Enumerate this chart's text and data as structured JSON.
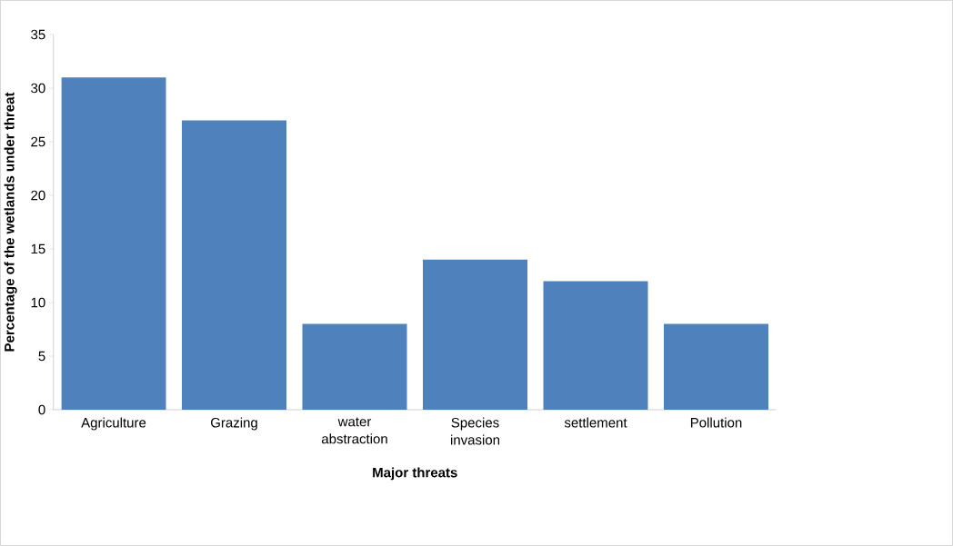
{
  "chart_data": {
    "type": "bar",
    "categories": [
      "Agriculture",
      "Grazing",
      "water abstraction",
      "Species invasion",
      "settlement",
      "Pollution"
    ],
    "values": [
      31,
      27,
      8,
      14,
      12,
      8
    ],
    "color": "#4f81bd",
    "xlabel": "Major threats",
    "ylabel": "Percentage of the wetlands under threat",
    "ylim": [
      0,
      35
    ],
    "yticks": [
      0,
      5,
      10,
      15,
      20,
      25,
      30,
      35
    ]
  }
}
